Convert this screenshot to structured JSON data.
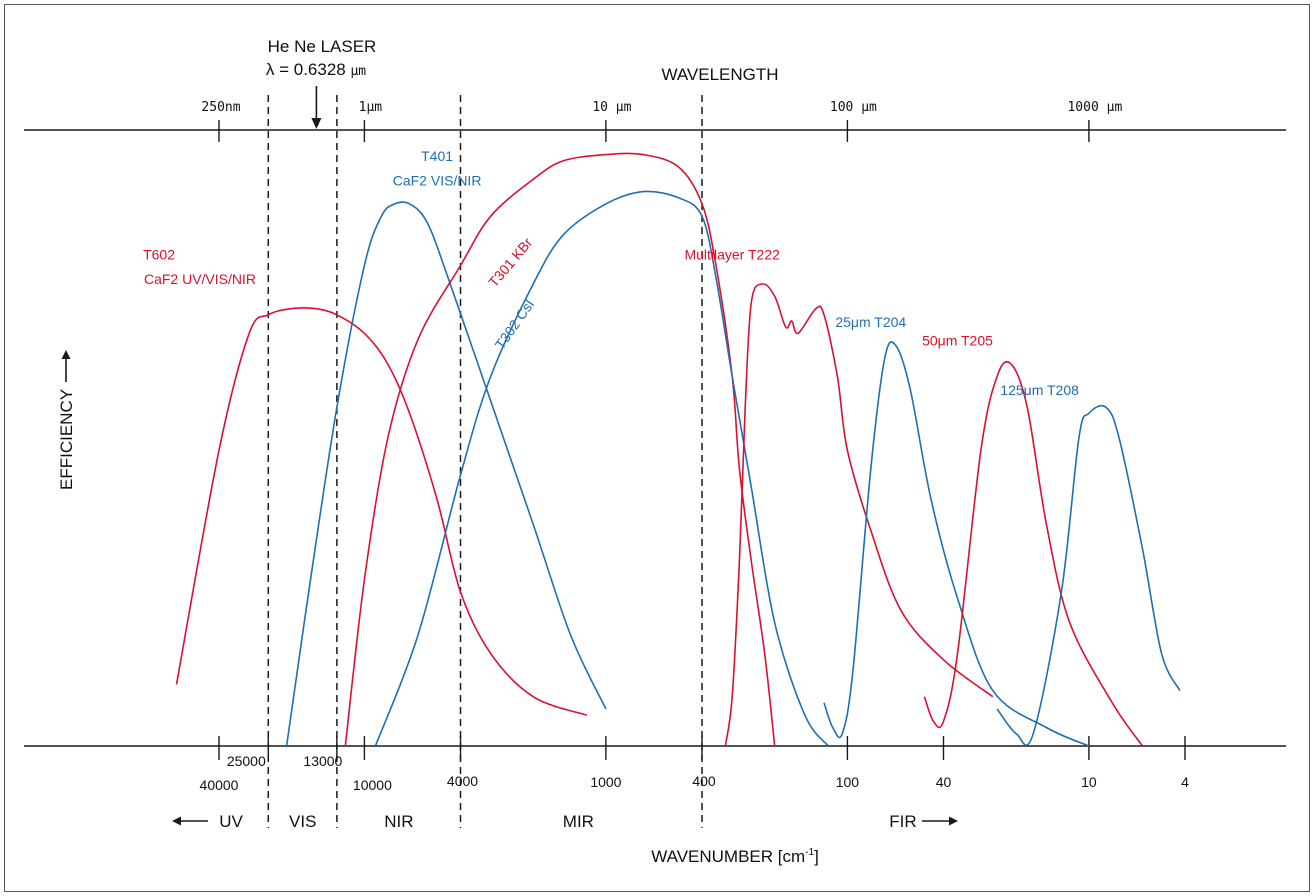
{
  "colors": {
    "red": "#d9112e",
    "blue": "#1f6fb2",
    "ink": "#1a1a1a"
  },
  "chart_data": {
    "type": "line",
    "title": "WAVELENGTH",
    "xlabel": "WAVENUMBER [cm-1]",
    "xlabel_base": "WAVENUMBER [cm",
    "xlabel_sup": "-1",
    "xlabel_end": "]",
    "ylabel": "EFFICIENCY",
    "x_scale": "log",
    "x_units": "wavenumber cm-1",
    "xlim": [
      80000,
      2.5
    ],
    "ylim": [
      0,
      1
    ],
    "grid": false,
    "laser": {
      "line1": "He Ne LASER",
      "line2_prefix": "λ = 0.6328 ",
      "line2_unit": "μm",
      "wavenumber": 15803
    },
    "wavelength_ticks": [
      {
        "label": "250nm",
        "value": 40000
      },
      {
        "label": "1μm",
        "value": 10000
      },
      {
        "label": "10 μm",
        "value": 1000
      },
      {
        "label": "100 μm",
        "value": 100
      },
      {
        "label": "1000 μm",
        "value": 10
      }
    ],
    "wavenumber_ticks": [
      {
        "label": "40000",
        "value": 40000
      },
      {
        "label": "25000",
        "value": 25000
      },
      {
        "label": "13000",
        "value": 13000
      },
      {
        "label": "10000",
        "value": 10000
      },
      {
        "label": "4000",
        "value": 4000
      },
      {
        "label": "1000",
        "value": 1000
      },
      {
        "label": "400",
        "value": 400
      },
      {
        "label": "100",
        "value": 100
      },
      {
        "label": "40",
        "value": 40
      },
      {
        "label": "10",
        "value": 10
      },
      {
        "label": "4",
        "value": 4
      }
    ],
    "boundaries": [
      25000,
      13000,
      4000,
      400
    ],
    "regions": [
      {
        "label": "UV",
        "value": 40000,
        "arrow": "left"
      },
      {
        "label": "VIS",
        "value": 18000
      },
      {
        "label": "NIR",
        "value": 7200
      },
      {
        "label": "MIR",
        "value": 1300
      },
      {
        "label": "FIR",
        "value": 50,
        "arrow": "right"
      }
    ],
    "series": [
      {
        "name": "T602",
        "name2": "CaF2 UV/VIS/NIR",
        "color": "red",
        "label_at": [
          33000,
          0.79
        ],
        "label2_at": [
          33000,
          0.75
        ],
        "label_anchor": "end",
        "points": [
          [
            60000,
            0.1
          ],
          [
            40000,
            0.48
          ],
          [
            30000,
            0.67
          ],
          [
            25000,
            0.7
          ],
          [
            20000,
            0.71
          ],
          [
            16000,
            0.71
          ],
          [
            13000,
            0.7
          ],
          [
            10000,
            0.67
          ],
          [
            8000,
            0.62
          ],
          [
            6500,
            0.54
          ],
          [
            5000,
            0.4
          ],
          [
            4000,
            0.25
          ],
          [
            3000,
            0.15
          ],
          [
            2000,
            0.08
          ],
          [
            1200,
            0.05
          ]
        ]
      },
      {
        "name": "T401",
        "name2": "CaF2 VIS/NIR",
        "color": "blue",
        "label_at": [
          5000,
          0.95
        ],
        "label2_at": [
          5000,
          0.91
        ],
        "points": [
          [
            21000,
            0.0
          ],
          [
            17000,
            0.25
          ],
          [
            13000,
            0.55
          ],
          [
            10000,
            0.78
          ],
          [
            8500,
            0.86
          ],
          [
            7500,
            0.88
          ],
          [
            6500,
            0.88
          ],
          [
            5500,
            0.85
          ],
          [
            4500,
            0.76
          ],
          [
            3000,
            0.56
          ],
          [
            2000,
            0.36
          ],
          [
            1400,
            0.18
          ],
          [
            1000,
            0.06
          ]
        ]
      },
      {
        "name": "T301 KBr",
        "color": "red",
        "label_at": [
          2400,
          0.78
        ],
        "label_rotate": -50,
        "points": [
          [
            12000,
            0.0
          ],
          [
            10000,
            0.27
          ],
          [
            8000,
            0.5
          ],
          [
            6000,
            0.66
          ],
          [
            4000,
            0.78
          ],
          [
            3000,
            0.86
          ],
          [
            2000,
            0.92
          ],
          [
            1500,
            0.95
          ],
          [
            1000,
            0.96
          ],
          [
            700,
            0.96
          ],
          [
            500,
            0.94
          ],
          [
            400,
            0.88
          ],
          [
            350,
            0.78
          ],
          [
            300,
            0.6
          ],
          [
            280,
            0.45
          ],
          [
            250,
            0.3
          ],
          [
            220,
            0.15
          ],
          [
            200,
            0.0
          ]
        ]
      },
      {
        "name": "T302 CsI",
        "color": "blue",
        "label_at": [
          2300,
          0.68
        ],
        "label_rotate": -55,
        "points": [
          [
            9000,
            0.0
          ],
          [
            6000,
            0.18
          ],
          [
            4000,
            0.44
          ],
          [
            3000,
            0.6
          ],
          [
            2000,
            0.75
          ],
          [
            1500,
            0.83
          ],
          [
            1000,
            0.88
          ],
          [
            700,
            0.9
          ],
          [
            500,
            0.89
          ],
          [
            400,
            0.86
          ],
          [
            350,
            0.76
          ],
          [
            300,
            0.6
          ],
          [
            250,
            0.42
          ],
          [
            200,
            0.2
          ],
          [
            150,
            0.05
          ],
          [
            120,
            0.0
          ]
        ]
      },
      {
        "name": "Multilayer T222",
        "color": "red",
        "label_at": [
          300,
          0.79
        ],
        "points": [
          [
            320,
            0.0
          ],
          [
            300,
            0.08
          ],
          [
            280,
            0.3
          ],
          [
            265,
            0.55
          ],
          [
            250,
            0.72
          ],
          [
            225,
            0.75
          ],
          [
            200,
            0.73
          ],
          [
            180,
            0.68
          ],
          [
            170,
            0.69
          ],
          [
            160,
            0.67
          ],
          [
            135,
            0.71
          ],
          [
            125,
            0.7
          ],
          [
            110,
            0.6
          ],
          [
            100,
            0.48
          ],
          [
            80,
            0.35
          ],
          [
            60,
            0.22
          ],
          [
            40,
            0.14
          ],
          [
            25,
            0.08
          ]
        ]
      },
      {
        "name": "25μm T204",
        "color": "blue",
        "label_at": [
          80,
          0.68
        ],
        "points": [
          [
            125,
            0.07
          ],
          [
            115,
            0.03
          ],
          [
            105,
            0.02
          ],
          [
            95,
            0.12
          ],
          [
            80,
            0.45
          ],
          [
            70,
            0.63
          ],
          [
            63,
            0.65
          ],
          [
            55,
            0.58
          ],
          [
            45,
            0.4
          ],
          [
            35,
            0.24
          ],
          [
            25,
            0.09
          ],
          [
            15,
            0.03
          ],
          [
            10,
            0.0
          ]
        ]
      },
      {
        "name": "50μm T205",
        "color": "red",
        "label_at": [
          35,
          0.65
        ],
        "points": [
          [
            48,
            0.08
          ],
          [
            44,
            0.04
          ],
          [
            40,
            0.04
          ],
          [
            35,
            0.15
          ],
          [
            28,
            0.48
          ],
          [
            24,
            0.6
          ],
          [
            21,
            0.62
          ],
          [
            18,
            0.55
          ],
          [
            15,
            0.36
          ],
          [
            12,
            0.2
          ],
          [
            8,
            0.07
          ],
          [
            6,
            0.0
          ]
        ]
      },
      {
        "name": "125μm T208",
        "color": "blue",
        "label_at": [
          16,
          0.57
        ],
        "points": [
          [
            24,
            0.06
          ],
          [
            20,
            0.02
          ],
          [
            17,
            0.02
          ],
          [
            13,
            0.25
          ],
          [
            11,
            0.5
          ],
          [
            10,
            0.54
          ],
          [
            8.5,
            0.55
          ],
          [
            7.5,
            0.5
          ],
          [
            6,
            0.32
          ],
          [
            5,
            0.15
          ],
          [
            4.2,
            0.09
          ]
        ]
      }
    ]
  }
}
